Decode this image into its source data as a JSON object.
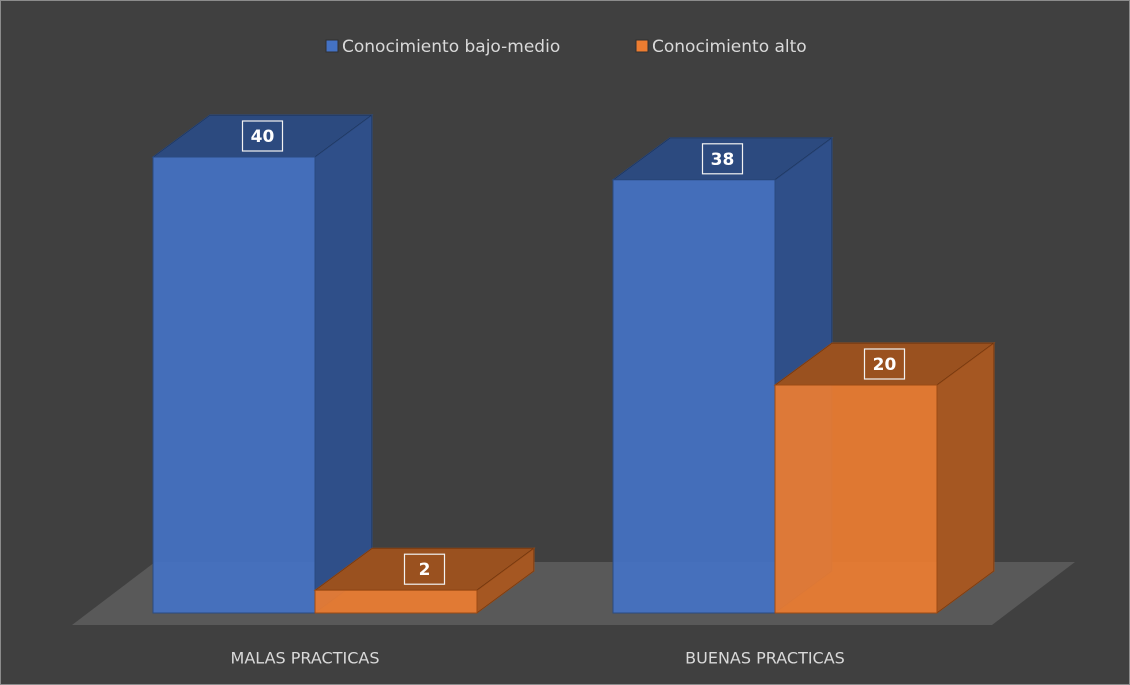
{
  "chart_data": {
    "type": "bar3d",
    "categories": [
      "MALAS PRACTICAS",
      "BUENAS PRACTICAS"
    ],
    "series": [
      {
        "name": "Conocimiento bajo-medio",
        "color": "#4472c4",
        "values": [
          40,
          38
        ]
      },
      {
        "name": "Conocimiento alto",
        "color": "#ed7d31",
        "values": [
          2,
          20
        ]
      }
    ],
    "legend": "top"
  }
}
